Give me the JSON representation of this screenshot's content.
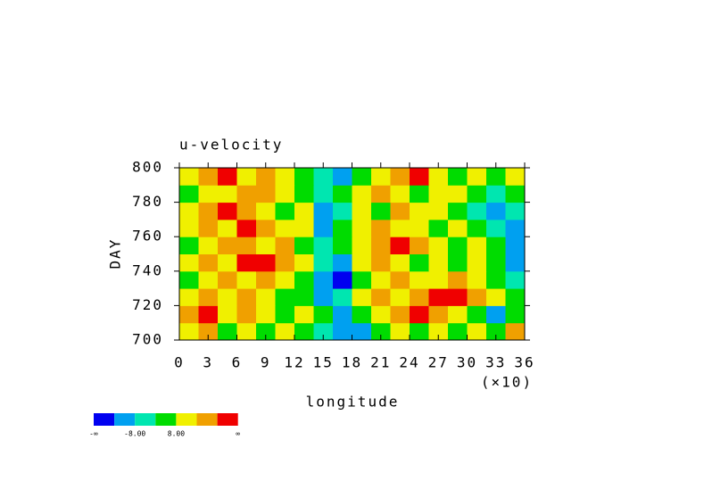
{
  "chart_data": {
    "type": "contour",
    "title": "u-velocity",
    "xlabel": "longitude",
    "ylabel": "DAY",
    "x_scale_note": "(×10)",
    "xlim": [
      0,
      360
    ],
    "ylim": [
      700,
      800
    ],
    "xticks": [
      {
        "value": 0,
        "label": "0"
      },
      {
        "value": 30,
        "label": "3"
      },
      {
        "value": 60,
        "label": "6"
      },
      {
        "value": 90,
        "label": "9"
      },
      {
        "value": 120,
        "label": "12"
      },
      {
        "value": 150,
        "label": "15"
      },
      {
        "value": 180,
        "label": "18"
      },
      {
        "value": 210,
        "label": "21"
      },
      {
        "value": 240,
        "label": "24"
      },
      {
        "value": 270,
        "label": "27"
      },
      {
        "value": 300,
        "label": "30"
      },
      {
        "value": 330,
        "label": "33"
      },
      {
        "value": 360,
        "label": "36"
      }
    ],
    "yticks": [
      700,
      720,
      740,
      760,
      780,
      800
    ],
    "x": [
      10,
      30,
      50,
      70,
      90,
      110,
      130,
      150,
      170,
      190,
      210,
      230,
      250,
      270,
      290,
      310,
      330,
      350
    ],
    "y": [
      705,
      715,
      725,
      735,
      745,
      755,
      765,
      775,
      785,
      795
    ],
    "z": [
      [
        12,
        20,
        4,
        12,
        4,
        12,
        4,
        -4,
        -12,
        -12,
        4,
        12,
        4,
        12,
        4,
        12,
        4,
        20
      ],
      [
        20,
        28,
        12,
        20,
        12,
        4,
        12,
        4,
        -12,
        4,
        12,
        20,
        28,
        20,
        12,
        4,
        -12,
        4
      ],
      [
        12,
        20,
        12,
        20,
        12,
        4,
        4,
        -12,
        -4,
        12,
        20,
        12,
        20,
        28,
        28,
        20,
        12,
        4
      ],
      [
        4,
        12,
        20,
        12,
        20,
        12,
        4,
        -12,
        -20,
        4,
        12,
        20,
        12,
        12,
        20,
        12,
        4,
        -4
      ],
      [
        12,
        20,
        12,
        28,
        28,
        20,
        12,
        -4,
        -12,
        12,
        20,
        12,
        4,
        12,
        4,
        12,
        4,
        -12
      ],
      [
        4,
        12,
        20,
        20,
        12,
        20,
        4,
        -4,
        4,
        12,
        20,
        28,
        20,
        12,
        4,
        12,
        4,
        -12
      ],
      [
        12,
        20,
        12,
        28,
        20,
        12,
        12,
        -12,
        4,
        12,
        20,
        12,
        12,
        4,
        12,
        4,
        -4,
        -12
      ],
      [
        12,
        20,
        28,
        20,
        12,
        4,
        12,
        -12,
        -4,
        12,
        4,
        20,
        12,
        12,
        4,
        -4,
        -12,
        -4
      ],
      [
        4,
        12,
        12,
        20,
        20,
        12,
        4,
        -4,
        4,
        12,
        20,
        12,
        4,
        12,
        12,
        4,
        -4,
        4
      ],
      [
        12,
        20,
        28,
        12,
        20,
        12,
        4,
        -4,
        -12,
        4,
        12,
        20,
        28,
        12,
        4,
        12,
        4,
        12
      ]
    ],
    "levels": [
      -16,
      -8,
      0,
      8,
      16,
      24
    ],
    "colors": [
      "#0000f0",
      "#00a0f0",
      "#00e6b0",
      "#00dc00",
      "#f0f000",
      "#f0a000",
      "#f00000"
    ],
    "colorbar_labels": [
      {
        "label": "-∞"
      },
      {
        "value": -8,
        "label": "-8.00"
      },
      {
        "value": 8,
        "label": "8.00"
      },
      {
        "label": "∞"
      }
    ]
  }
}
